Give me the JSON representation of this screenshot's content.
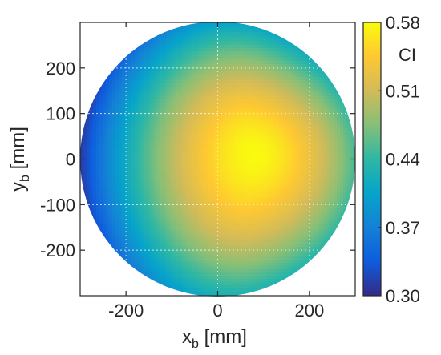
{
  "chart_data": {
    "type": "heatmap",
    "title": "",
    "x_axis": {
      "label_main": "x",
      "label_sub": "b",
      "label_unit": " [mm]",
      "range": [
        -300,
        300
      ],
      "ticks": [
        -200,
        0,
        200
      ],
      "tick_labels": [
        "-200",
        "0",
        "200"
      ]
    },
    "y_axis": {
      "label_main": "y",
      "label_sub": "b",
      "label_unit": " [mm]",
      "range": [
        -300,
        300
      ],
      "ticks": [
        200,
        100,
        0,
        -100,
        -200
      ],
      "tick_labels": [
        "200",
        "100",
        "0",
        "-100",
        "-200"
      ]
    },
    "grid": true,
    "domain": {
      "shape": "circle",
      "center": [
        0,
        0
      ],
      "radius": 300
    },
    "field": {
      "peak_x": 80,
      "peak_y": 10,
      "peak_value": 0.58,
      "edge_value_left": 0.31,
      "edge_value_right": 0.45,
      "edge_value_top": 0.41,
      "edge_value_bottom": 0.43
    },
    "colorbar": {
      "title": "CI",
      "range": [
        0.3,
        0.58
      ],
      "ticks": [
        0.58,
        0.51,
        0.44,
        0.37,
        0.3
      ],
      "tick_labels": [
        "0.58",
        "0.51",
        "0.44",
        "0.37",
        "0.30"
      ],
      "colormap": "parula",
      "colors": [
        "#352a87",
        "#0f5cdd",
        "#1481d6",
        "#06a4ca",
        "#2eb7a4",
        "#87bf77",
        "#d1bb59",
        "#fec832",
        "#f9fb0e"
      ]
    }
  }
}
